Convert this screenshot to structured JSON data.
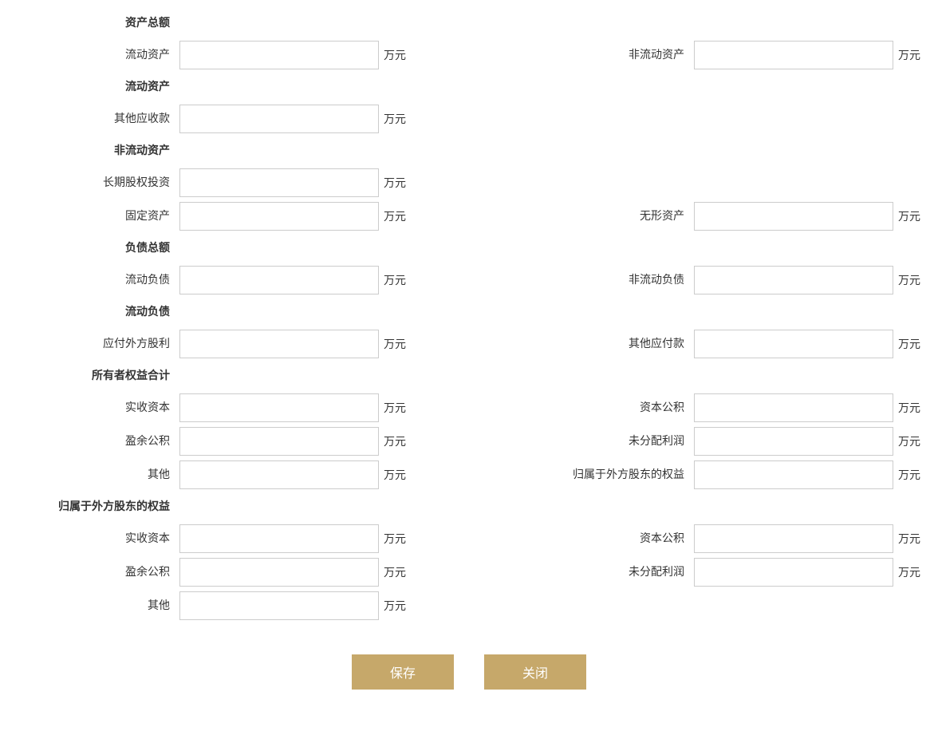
{
  "unit": "万元",
  "colors": {
    "button_bg": "#c6a86a",
    "button_text": "#ffffff",
    "input_border": "#cccccc",
    "text": "#333333",
    "background": "#ffffff"
  },
  "sections": {
    "total_assets": {
      "header": "资产总额"
    },
    "current_assets_row": {
      "left_label": "流动资产",
      "right_label": "非流动资产"
    },
    "current_assets_section": {
      "header": "流动资产"
    },
    "other_receivables": {
      "left_label": "其他应收款"
    },
    "noncurrent_assets_section": {
      "header": "非流动资产"
    },
    "longterm_equity": {
      "left_label": "长期股权投资"
    },
    "fixed_intangible": {
      "left_label": "固定资产",
      "right_label": "无形资产"
    },
    "total_liabilities": {
      "header": "负债总额"
    },
    "liabilities_row": {
      "left_label": "流动负债",
      "right_label": "非流动负债"
    },
    "current_liabilities_section": {
      "header": "流动负债"
    },
    "payable_row": {
      "left_label": "应付外方股利",
      "right_label": "其他应付款"
    },
    "owners_equity": {
      "header": "所有者权益合计"
    },
    "paidin_capitalreserve": {
      "left_label": "实收资本",
      "right_label": "资本公积"
    },
    "surplus_undist": {
      "left_label": "盈余公积",
      "right_label": "未分配利润"
    },
    "other_foreign": {
      "left_label": "其他",
      "right_label": "归属于外方股东的权益"
    },
    "foreign_equity": {
      "header": "归属于外方股东的权益"
    },
    "f_paidin_capitalreserve": {
      "left_label": "实收资本",
      "right_label": "资本公积"
    },
    "f_surplus_undist": {
      "left_label": "盈余公积",
      "right_label": "未分配利润"
    },
    "f_other": {
      "left_label": "其他"
    }
  },
  "buttons": {
    "save": "保存",
    "close": "关闭"
  }
}
